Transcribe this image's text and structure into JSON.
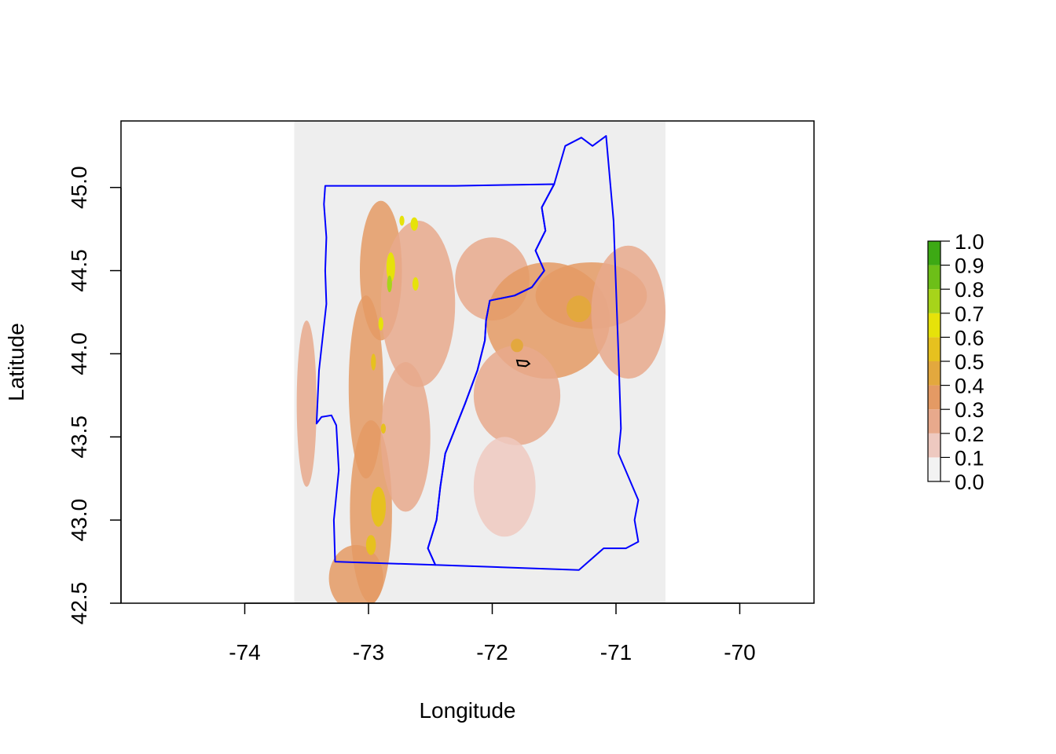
{
  "chart_data": {
    "type": "heatmap",
    "title": "",
    "xlabel": "Longitude",
    "ylabel": "Latitude",
    "xlim": [
      -75.0,
      -69.4
    ],
    "ylim": [
      42.5,
      45.4
    ],
    "x_ticks": [
      {
        "value": -74,
        "label": "-74"
      },
      {
        "value": -73,
        "label": "-73"
      },
      {
        "value": -72,
        "label": "-72"
      },
      {
        "value": -71,
        "label": "-71"
      },
      {
        "value": -70,
        "label": "-70"
      }
    ],
    "y_ticks": [
      {
        "value": 42.5,
        "label": "42.5"
      },
      {
        "value": 43.0,
        "label": "43.0"
      },
      {
        "value": 43.5,
        "label": "43.5"
      },
      {
        "value": 44.0,
        "label": "44.0"
      },
      {
        "value": 44.5,
        "label": "44.5"
      },
      {
        "value": 45.0,
        "label": "45.0"
      }
    ],
    "raster_extent": {
      "lon": [
        -73.6,
        -70.6
      ],
      "lat": [
        42.5,
        45.4
      ]
    },
    "background_color": "#eeeeee",
    "boundary_color": "#0000ff",
    "marker_color": "#000000",
    "legend": {
      "placement": "right",
      "breaks": [
        {
          "value": 0.0,
          "label": "0.0"
        },
        {
          "value": 0.1,
          "label": "0.1"
        },
        {
          "value": 0.2,
          "label": "0.2"
        },
        {
          "value": 0.3,
          "label": "0.3"
        },
        {
          "value": 0.4,
          "label": "0.4"
        },
        {
          "value": 0.5,
          "label": "0.5"
        },
        {
          "value": 0.6,
          "label": "0.6"
        },
        {
          "value": 0.7,
          "label": "0.7"
        },
        {
          "value": 0.8,
          "label": "0.8"
        },
        {
          "value": 0.9,
          "label": "0.9"
        },
        {
          "value": 1.0,
          "label": "1.0"
        }
      ],
      "colors": [
        "#f2f2f2",
        "#eec9c0",
        "#e8a98c",
        "#e49a64",
        "#e3a83e",
        "#e6c11f",
        "#e6e20a",
        "#a7d41a",
        "#6dbf18",
        "#3da914"
      ]
    },
    "boundaries": [
      {
        "name": "Vermont",
        "points": [
          [
            -73.35,
            45.01
          ],
          [
            -72.85,
            45.01
          ],
          [
            -72.3,
            45.01
          ],
          [
            -71.5,
            45.02
          ],
          [
            -71.6,
            44.88
          ],
          [
            -71.57,
            44.74
          ],
          [
            -71.65,
            44.62
          ],
          [
            -71.58,
            44.5
          ],
          [
            -71.68,
            44.4
          ],
          [
            -71.82,
            44.35
          ],
          [
            -72.02,
            44.32
          ],
          [
            -72.05,
            44.2
          ],
          [
            -72.06,
            44.08
          ],
          [
            -72.12,
            43.9
          ],
          [
            -72.22,
            43.7
          ],
          [
            -72.3,
            43.55
          ],
          [
            -72.38,
            43.4
          ],
          [
            -72.42,
            43.2
          ],
          [
            -72.45,
            43.0
          ],
          [
            -72.52,
            42.83
          ],
          [
            -72.46,
            42.73
          ],
          [
            -73.27,
            42.75
          ],
          [
            -73.28,
            43.0
          ],
          [
            -73.24,
            43.3
          ],
          [
            -73.26,
            43.57
          ],
          [
            -73.3,
            43.63
          ],
          [
            -73.38,
            43.62
          ],
          [
            -73.42,
            43.58
          ],
          [
            -73.4,
            43.9
          ],
          [
            -73.37,
            44.1
          ],
          [
            -73.34,
            44.3
          ],
          [
            -73.35,
            44.5
          ],
          [
            -73.34,
            44.7
          ],
          [
            -73.36,
            44.9
          ],
          [
            -73.35,
            45.01
          ]
        ]
      },
      {
        "name": "New Hampshire",
        "points": [
          [
            -71.5,
            45.02
          ],
          [
            -71.41,
            45.25
          ],
          [
            -71.28,
            45.3
          ],
          [
            -71.19,
            45.25
          ],
          [
            -71.08,
            45.31
          ],
          [
            -71.02,
            44.8
          ],
          [
            -70.98,
            44.0
          ],
          [
            -70.96,
            43.55
          ],
          [
            -70.98,
            43.4
          ],
          [
            -70.82,
            43.12
          ],
          [
            -70.85,
            43.0
          ],
          [
            -70.82,
            42.87
          ],
          [
            -70.92,
            42.83
          ],
          [
            -71.1,
            42.83
          ],
          [
            -71.3,
            42.7
          ],
          [
            -72.46,
            42.73
          ],
          [
            -72.52,
            42.83
          ],
          [
            -72.45,
            43.0
          ],
          [
            -72.42,
            43.2
          ],
          [
            -72.38,
            43.4
          ],
          [
            -72.3,
            43.55
          ],
          [
            -72.22,
            43.7
          ],
          [
            -72.12,
            43.9
          ],
          [
            -72.06,
            44.08
          ],
          [
            -72.05,
            44.2
          ],
          [
            -72.02,
            44.32
          ],
          [
            -71.82,
            44.35
          ],
          [
            -71.68,
            44.4
          ],
          [
            -71.58,
            44.5
          ],
          [
            -71.65,
            44.62
          ],
          [
            -71.57,
            44.74
          ],
          [
            -71.6,
            44.88
          ],
          [
            -71.5,
            45.02
          ]
        ]
      }
    ],
    "marker_polygon": [
      [
        -71.8,
        43.96
      ],
      [
        -71.72,
        43.955
      ],
      [
        -71.7,
        43.94
      ],
      [
        -71.73,
        43.925
      ],
      [
        -71.79,
        43.93
      ],
      [
        -71.8,
        43.96
      ]
    ],
    "highlands": [
      {
        "lon": -72.9,
        "lat": 44.5,
        "rlon": 0.17,
        "rlat": 0.42,
        "level": 0.3
      },
      {
        "lon": -73.02,
        "lat": 43.8,
        "rlon": 0.14,
        "rlat": 0.55,
        "level": 0.3
      },
      {
        "lon": -72.98,
        "lat": 43.05,
        "rlon": 0.17,
        "rlat": 0.55,
        "level": 0.3
      },
      {
        "lon": -72.6,
        "lat": 44.3,
        "rlon": 0.3,
        "rlat": 0.5,
        "level": 0.2
      },
      {
        "lon": -72.7,
        "lat": 43.5,
        "rlon": 0.2,
        "rlat": 0.45,
        "level": 0.2
      },
      {
        "lon": -72.0,
        "lat": 44.45,
        "rlon": 0.3,
        "rlat": 0.25,
        "level": 0.2
      },
      {
        "lon": -71.55,
        "lat": 44.2,
        "rlon": 0.5,
        "rlat": 0.35,
        "level": 0.3
      },
      {
        "lon": -71.2,
        "lat": 44.35,
        "rlon": 0.45,
        "rlat": 0.2,
        "level": 0.3
      },
      {
        "lon": -71.8,
        "lat": 43.75,
        "rlon": 0.35,
        "rlat": 0.3,
        "level": 0.2
      },
      {
        "lon": -71.9,
        "lat": 43.2,
        "rlon": 0.25,
        "rlat": 0.3,
        "level": 0.1
      },
      {
        "lon": -73.5,
        "lat": 43.7,
        "rlon": 0.08,
        "rlat": 0.5,
        "level": 0.2
      },
      {
        "lon": -73.1,
        "lat": 42.65,
        "rlon": 0.22,
        "rlat": 0.2,
        "level": 0.3
      },
      {
        "lon": -70.9,
        "lat": 44.25,
        "rlon": 0.3,
        "rlat": 0.4,
        "level": 0.2
      }
    ],
    "peaks": [
      {
        "lon": -72.82,
        "lat": 44.52,
        "rlon": 0.035,
        "rlat": 0.09,
        "level": 0.6
      },
      {
        "lon": -72.83,
        "lat": 44.42,
        "rlon": 0.02,
        "rlat": 0.05,
        "level": 0.7
      },
      {
        "lon": -72.63,
        "lat": 44.78,
        "rlon": 0.03,
        "rlat": 0.04,
        "level": 0.6
      },
      {
        "lon": -72.73,
        "lat": 44.8,
        "rlon": 0.02,
        "rlat": 0.03,
        "level": 0.6
      },
      {
        "lon": -72.62,
        "lat": 44.42,
        "rlon": 0.025,
        "rlat": 0.04,
        "level": 0.6
      },
      {
        "lon": -72.9,
        "lat": 44.18,
        "rlon": 0.02,
        "rlat": 0.04,
        "level": 0.6
      },
      {
        "lon": -72.96,
        "lat": 43.95,
        "rlon": 0.02,
        "rlat": 0.05,
        "level": 0.5
      },
      {
        "lon": -72.88,
        "lat": 43.55,
        "rlon": 0.02,
        "rlat": 0.03,
        "level": 0.5
      },
      {
        "lon": -72.92,
        "lat": 43.08,
        "rlon": 0.06,
        "rlat": 0.12,
        "level": 0.5
      },
      {
        "lon": -72.98,
        "lat": 42.85,
        "rlon": 0.04,
        "rlat": 0.06,
        "level": 0.5
      },
      {
        "lon": -71.3,
        "lat": 44.27,
        "rlon": 0.1,
        "rlat": 0.08,
        "level": 0.4
      },
      {
        "lon": -71.8,
        "lat": 44.05,
        "rlon": 0.05,
        "rlat": 0.04,
        "level": 0.4
      }
    ]
  }
}
